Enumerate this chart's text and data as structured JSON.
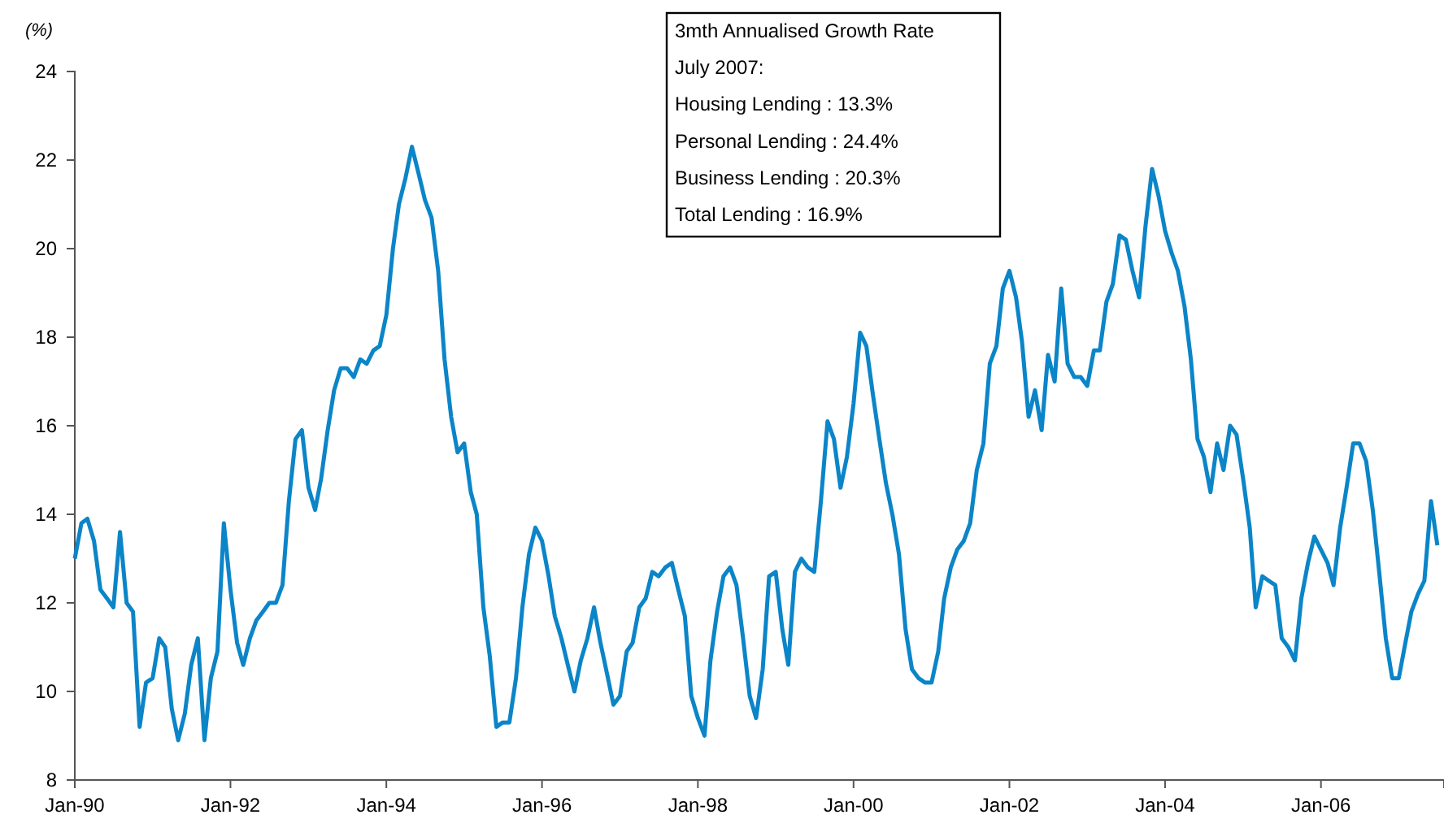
{
  "chart_data": {
    "type": "line",
    "ylabel": "(%)",
    "x": [
      "1990-01",
      "1990-02",
      "1990-03",
      "1990-04",
      "1990-05",
      "1990-06",
      "1990-07",
      "1990-08",
      "1990-09",
      "1990-10",
      "1990-11",
      "1990-12",
      "1991-01",
      "1991-02",
      "1991-03",
      "1991-04",
      "1991-05",
      "1991-06",
      "1991-07",
      "1991-08",
      "1991-09",
      "1991-10",
      "1991-11",
      "1991-12",
      "1992-01",
      "1992-02",
      "1992-03",
      "1992-04",
      "1992-05",
      "1992-06",
      "1992-07",
      "1992-08",
      "1992-09",
      "1992-10",
      "1992-11",
      "1992-12",
      "1993-01",
      "1993-02",
      "1993-03",
      "1993-04",
      "1993-05",
      "1993-06",
      "1993-07",
      "1993-08",
      "1993-09",
      "1993-10",
      "1993-11",
      "1993-12",
      "1994-01",
      "1994-02",
      "1994-03",
      "1994-04",
      "1994-05",
      "1994-06",
      "1994-07",
      "1994-08",
      "1994-09",
      "1994-10",
      "1994-11",
      "1994-12",
      "1995-01",
      "1995-02",
      "1995-03",
      "1995-04",
      "1995-05",
      "1995-06",
      "1995-07",
      "1995-08",
      "1995-09",
      "1995-10",
      "1995-11",
      "1995-12",
      "1996-01",
      "1996-02",
      "1996-03",
      "1996-04",
      "1996-05",
      "1996-06",
      "1996-07",
      "1996-08",
      "1996-09",
      "1996-10",
      "1996-11",
      "1996-12",
      "1997-01",
      "1997-02",
      "1997-03",
      "1997-04",
      "1997-05",
      "1997-06",
      "1997-07",
      "1997-08",
      "1997-09",
      "1997-10",
      "1997-11",
      "1997-12",
      "1998-01",
      "1998-02",
      "1998-03",
      "1998-04",
      "1998-05",
      "1998-06",
      "1998-07",
      "1998-08",
      "1998-09",
      "1998-10",
      "1998-11",
      "1998-12",
      "1999-01",
      "1999-02",
      "1999-03",
      "1999-04",
      "1999-05",
      "1999-06",
      "1999-07",
      "1999-08",
      "1999-09",
      "1999-10",
      "1999-11",
      "1999-12",
      "2000-01",
      "2000-02",
      "2000-03",
      "2000-04",
      "2000-05",
      "2000-06",
      "2000-07",
      "2000-08",
      "2000-09",
      "2000-10",
      "2000-11",
      "2000-12",
      "2001-01",
      "2001-02",
      "2001-03",
      "2001-04",
      "2001-05",
      "2001-06",
      "2001-07",
      "2001-08",
      "2001-09",
      "2001-10",
      "2001-11",
      "2001-12",
      "2002-01",
      "2002-02",
      "2002-03",
      "2002-04",
      "2002-05",
      "2002-06",
      "2002-07",
      "2002-08",
      "2002-09",
      "2002-10",
      "2002-11",
      "2002-12",
      "2003-01",
      "2003-02",
      "2003-03",
      "2003-04",
      "2003-05",
      "2003-06",
      "2003-07",
      "2003-08",
      "2003-09",
      "2003-10",
      "2003-11",
      "2003-12",
      "2004-01",
      "2004-02",
      "2004-03",
      "2004-04",
      "2004-05",
      "2004-06",
      "2004-07",
      "2004-08",
      "2004-09",
      "2004-10",
      "2004-11",
      "2004-12",
      "2005-01",
      "2005-02",
      "2005-03",
      "2005-04",
      "2005-05",
      "2005-06",
      "2005-07",
      "2005-08",
      "2005-09",
      "2005-10",
      "2005-11",
      "2005-12",
      "2006-01",
      "2006-02",
      "2006-03",
      "2006-04",
      "2006-05",
      "2006-06",
      "2006-07",
      "2006-08",
      "2006-09",
      "2006-10",
      "2006-11",
      "2006-12",
      "2007-01",
      "2007-02",
      "2007-03",
      "2007-04",
      "2007-05",
      "2007-06",
      "2007-07"
    ],
    "series": [
      {
        "color": "#0b85c8",
        "values": [
          13.0,
          13.8,
          13.9,
          13.4,
          12.3,
          12.1,
          11.9,
          13.6,
          12.0,
          11.8,
          9.2,
          10.2,
          10.3,
          11.2,
          11.0,
          9.6,
          8.9,
          9.5,
          10.6,
          11.2,
          8.9,
          10.3,
          10.9,
          13.8,
          12.3,
          11.1,
          10.6,
          11.2,
          11.6,
          11.8,
          12.0,
          12.0,
          12.4,
          14.3,
          15.7,
          15.9,
          14.6,
          14.1,
          14.8,
          15.9,
          16.8,
          17.3,
          17.3,
          17.1,
          17.5,
          17.4,
          17.7,
          17.8,
          18.5,
          20.0,
          21.0,
          21.6,
          22.3,
          21.7,
          21.1,
          20.7,
          19.5,
          17.5,
          16.2,
          15.4,
          15.6,
          14.5,
          14.0,
          11.9,
          10.8,
          9.2,
          9.3,
          9.3,
          10.3,
          11.9,
          13.1,
          13.7,
          13.4,
          12.6,
          11.7,
          11.2,
          10.6,
          10.0,
          10.7,
          11.2,
          11.9,
          11.1,
          10.4,
          9.7,
          9.9,
          10.9,
          11.1,
          11.9,
          12.1,
          12.7,
          12.6,
          12.8,
          12.9,
          12.3,
          11.7,
          9.9,
          9.4,
          9.0,
          10.7,
          11.8,
          12.6,
          12.8,
          12.4,
          11.2,
          9.9,
          9.4,
          10.5,
          12.6,
          12.7,
          11.4,
          10.6,
          12.7,
          13.0,
          12.8,
          12.7,
          14.3,
          16.1,
          15.7,
          14.6,
          15.3,
          16.5,
          18.1,
          17.8,
          16.7,
          15.7,
          14.7,
          14.0,
          13.1,
          11.4,
          10.5,
          10.3,
          10.2,
          10.2,
          10.9,
          12.1,
          12.8,
          13.2,
          13.4,
          13.8,
          15.0,
          15.6,
          17.4,
          17.8,
          19.1,
          19.5,
          18.9,
          17.9,
          16.2,
          16.8,
          15.9,
          17.6,
          17.0,
          19.1,
          17.4,
          17.1,
          17.1,
          16.9,
          17.7,
          17.7,
          18.8,
          19.2,
          20.3,
          20.2,
          19.5,
          18.9,
          20.5,
          21.8,
          21.2,
          20.4,
          19.9,
          19.5,
          18.7,
          17.5,
          15.7,
          15.3,
          14.5,
          15.6,
          15.0,
          16.0,
          15.8,
          14.8,
          13.7,
          11.9,
          12.6,
          12.5,
          12.4,
          11.2,
          11.0,
          10.7,
          12.1,
          12.9,
          13.5,
          13.2,
          12.9,
          12.4,
          13.7,
          14.6,
          15.6,
          15.6,
          15.2,
          14.1,
          12.7,
          11.2,
          10.3,
          10.3,
          11.1,
          11.8,
          12.2,
          12.5,
          14.3,
          13.3
        ]
      }
    ],
    "xlim": [
      "1990-01",
      "2007-08"
    ],
    "xticks": [
      {
        "value": "1990-01",
        "label": "Jan-90"
      },
      {
        "value": "1992-01",
        "label": "Jan-92"
      },
      {
        "value": "1994-01",
        "label": "Jan-94"
      },
      {
        "value": "1996-01",
        "label": "Jan-96"
      },
      {
        "value": "1998-01",
        "label": "Jan-98"
      },
      {
        "value": "2000-01",
        "label": "Jan-00"
      },
      {
        "value": "2002-01",
        "label": "Jan-02"
      },
      {
        "value": "2004-01",
        "label": "Jan-04"
      },
      {
        "value": "2006-01",
        "label": "Jan-06"
      }
    ],
    "ylim": [
      8,
      24
    ],
    "yticks": [
      8,
      10,
      12,
      14,
      16,
      18,
      20,
      22,
      24
    ],
    "annotations": [
      "3mth Annualised Growth Rate",
      "July 2007:",
      "Housing Lending : 13.3%",
      "Personal Lending : 24.4%",
      "Business Lending : 20.3%",
      "Total Lending : 16.9%"
    ]
  }
}
